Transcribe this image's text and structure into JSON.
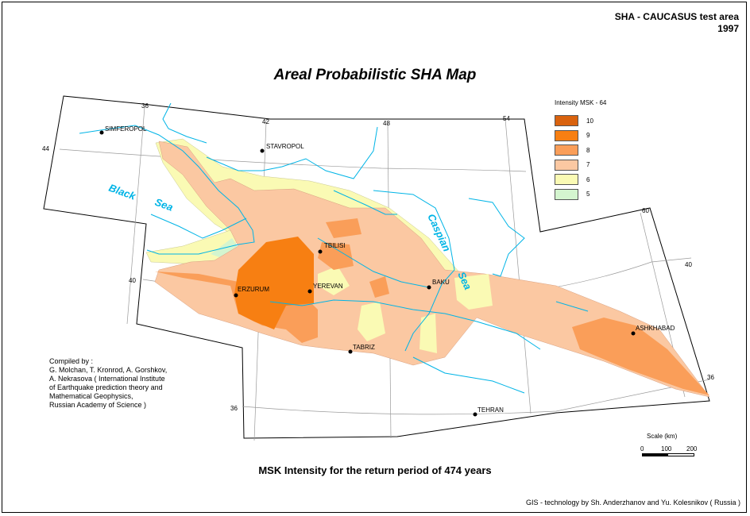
{
  "header": {
    "line1": "SHA - CAUCASUS test area",
    "line2": "1997"
  },
  "title": "Areal Probabilistic SHA Map",
  "subtitle": "MSK Intensity for the return period of 474 years",
  "credits": {
    "line1": "Compiled by :",
    "line2": "G. Molchan, T. Kronrod, A. Gorshkov,",
    "line3": "A. Nekrasova ( International Institute",
    "line4": "of Earthquake prediction theory and",
    "line5": "Mathematical Geophysics,",
    "line6": "Russian Academy of Science )"
  },
  "gis_credit": "GIS - technology by Sh. Anderzhanov and Yu. Kolesnikov ( Russia )",
  "legend": {
    "title": "Intensity MSK - 64",
    "items": [
      {
        "label": "10",
        "color": "#d9620e"
      },
      {
        "label": "9",
        "color": "#f77f12"
      },
      {
        "label": "8",
        "color": "#fa9e59"
      },
      {
        "label": "7",
        "color": "#fbc8a2"
      },
      {
        "label": "6",
        "color": "#fafab4"
      },
      {
        "label": "5",
        "color": "#d4f5cf"
      }
    ]
  },
  "scale": {
    "title": "Scale (km)",
    "ticks": [
      "0",
      "100",
      "200"
    ]
  },
  "cities": [
    {
      "name": "SIMFEROPOL"
    },
    {
      "name": "STAVROPOL"
    },
    {
      "name": "TBILISI"
    },
    {
      "name": "YEREVAN"
    },
    {
      "name": "ERZURUM"
    },
    {
      "name": "BAKU"
    },
    {
      "name": "TABRIZ"
    },
    {
      "name": "ASHKHABAD"
    },
    {
      "name": "TEHRAN"
    }
  ],
  "seas": {
    "black_sea_1": "Black",
    "black_sea_2": "Sea",
    "caspian_1": "Caspian",
    "caspian_2": "Sea"
  },
  "graticule_labels": {
    "lon36": "36",
    "lon42": "42",
    "lon48": "48",
    "lon54": "54",
    "lon60": "60",
    "lat44": "44",
    "lat40": "40",
    "lat40e": "40",
    "lat36": "36",
    "lat36e": "36"
  },
  "colors": {
    "water": "#00b4e6",
    "grid": "#9a9a9a"
  }
}
